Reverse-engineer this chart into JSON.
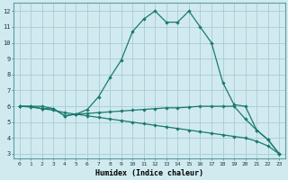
{
  "xlabel": "Humidex (Indice chaleur)",
  "ylabel": "",
  "bg_color": "#d0eaf0",
  "grid_color": "#a8ccd4",
  "line_color": "#1a7a6e",
  "xlim": [
    -0.5,
    23.5
  ],
  "ylim": [
    2.7,
    12.5
  ],
  "xticks": [
    0,
    1,
    2,
    3,
    4,
    5,
    6,
    7,
    8,
    9,
    10,
    11,
    12,
    13,
    14,
    15,
    16,
    17,
    18,
    19,
    20,
    21,
    22,
    23
  ],
  "yticks": [
    3,
    4,
    5,
    6,
    7,
    8,
    9,
    10,
    11,
    12
  ],
  "line1_x": [
    0,
    1,
    2,
    3,
    4,
    5,
    6,
    7,
    8,
    9,
    10,
    11,
    12,
    13,
    14,
    15,
    16,
    17,
    18,
    19,
    20,
    21,
    22,
    23
  ],
  "line1_y": [
    6.0,
    6.0,
    6.0,
    5.85,
    5.4,
    5.5,
    5.8,
    6.6,
    7.8,
    8.9,
    10.7,
    11.5,
    12.0,
    11.3,
    11.3,
    12.0,
    11.0,
    10.0,
    7.5,
    6.1,
    6.0,
    4.5,
    3.9,
    3.0
  ],
  "line2_x": [
    0,
    1,
    2,
    3,
    4,
    5,
    6,
    7,
    8,
    9,
    10,
    11,
    12,
    13,
    14,
    15,
    16,
    17,
    18,
    19,
    20,
    21,
    22,
    23
  ],
  "line2_y": [
    6.0,
    6.0,
    5.85,
    5.85,
    5.4,
    5.5,
    5.55,
    5.6,
    5.65,
    5.7,
    5.75,
    5.8,
    5.85,
    5.9,
    5.9,
    5.95,
    6.0,
    6.0,
    6.0,
    6.0,
    5.2,
    4.5,
    3.9,
    3.0
  ],
  "line3_x": [
    0,
    1,
    2,
    3,
    4,
    5,
    6,
    7,
    8,
    9,
    10,
    11,
    12,
    13,
    14,
    15,
    16,
    17,
    18,
    19,
    20,
    21,
    22,
    23
  ],
  "line3_y": [
    6.0,
    5.95,
    5.85,
    5.75,
    5.6,
    5.5,
    5.4,
    5.3,
    5.2,
    5.1,
    5.0,
    4.9,
    4.8,
    4.7,
    4.6,
    4.5,
    4.4,
    4.3,
    4.2,
    4.1,
    4.0,
    3.8,
    3.5,
    3.0
  ]
}
